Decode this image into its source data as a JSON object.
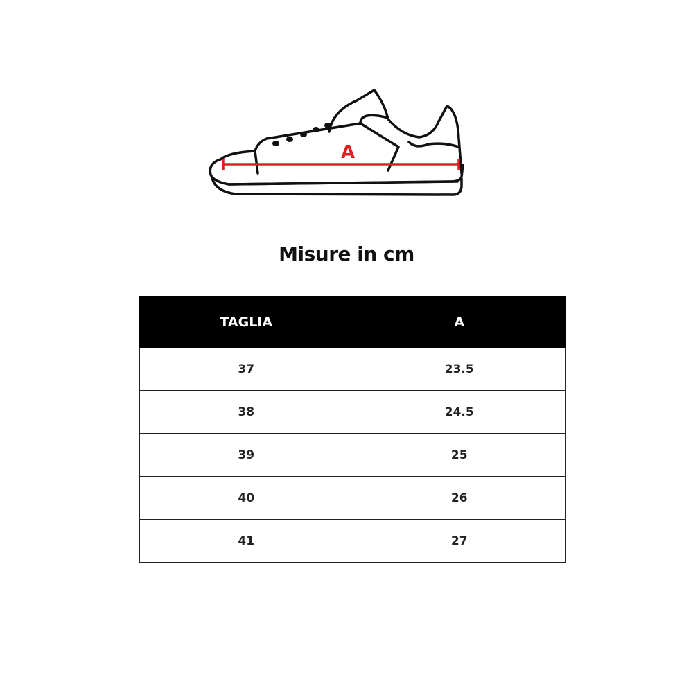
{
  "diagram": {
    "measure_label": "A",
    "measure_color": "#e02020"
  },
  "title": "Misure in cm",
  "table": {
    "headers": [
      "TAGLIA",
      "A"
    ],
    "rows": [
      [
        "37",
        "23.5"
      ],
      [
        "38",
        "24.5"
      ],
      [
        "39",
        "25"
      ],
      [
        "40",
        "26"
      ],
      [
        "41",
        "27"
      ]
    ]
  }
}
